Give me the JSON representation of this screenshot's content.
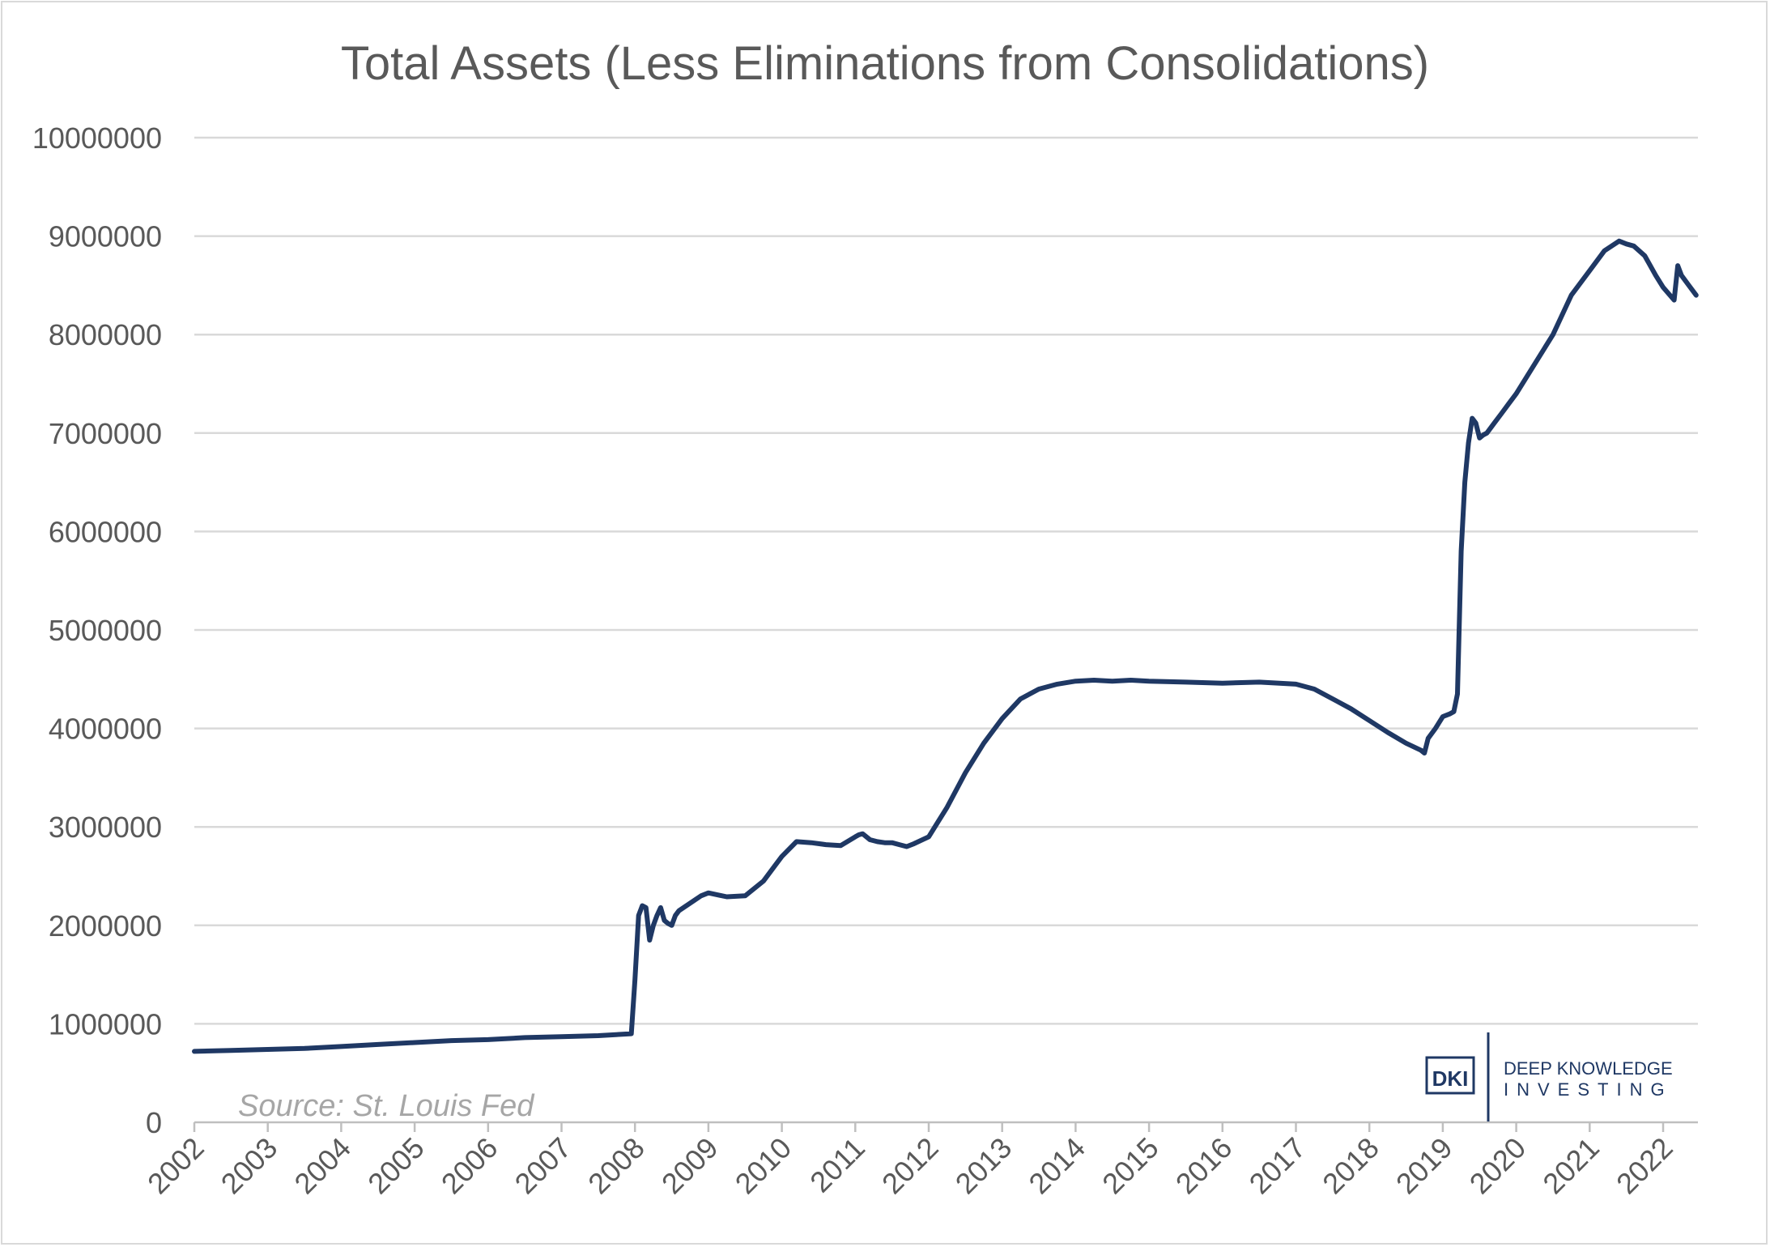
{
  "chart_data": {
    "type": "line",
    "title": "Total Assets (Less Eliminations from Consolidations)",
    "xlabel": "",
    "ylabel": "",
    "ylim": [
      0,
      10000000
    ],
    "yticks": [
      "0",
      "1000000",
      "2000000",
      "3000000",
      "4000000",
      "5000000",
      "6000000",
      "7000000",
      "8000000",
      "9000000",
      "10000000"
    ],
    "xticks": [
      "2002",
      "2003",
      "2004",
      "2005",
      "2006",
      "2007",
      "2008",
      "2009",
      "2010",
      "2011",
      "2012",
      "2013",
      "2014",
      "2015",
      "2016",
      "2017",
      "2018",
      "2019",
      "2020",
      "2021",
      "2022"
    ],
    "grid": "horizontal",
    "line_color": "#1f3864",
    "series": [
      {
        "x": [
          2002.0,
          2002.5,
          2003.0,
          2003.5,
          2004.0,
          2004.5,
          2005.0,
          2005.5,
          2006.0,
          2006.5,
          2007.0,
          2007.5,
          2007.95,
          2008.0,
          2008.05,
          2008.1,
          2008.15,
          2008.2,
          2008.25,
          2008.3,
          2008.35,
          2008.4,
          2008.45,
          2008.5,
          2008.55,
          2008.6,
          2008.7,
          2008.8,
          2008.9,
          2009.0,
          2009.25,
          2009.5,
          2009.75,
          2009.9,
          2010.0,
          2010.2,
          2010.4,
          2010.6,
          2010.8,
          2011.0,
          2011.05,
          2011.1,
          2011.2,
          2011.3,
          2011.4,
          2011.5,
          2011.6,
          2011.7,
          2011.8,
          2012.0,
          2012.25,
          2012.5,
          2012.75,
          2013.0,
          2013.25,
          2013.5,
          2013.75,
          2014.0,
          2014.25,
          2014.5,
          2014.75,
          2015.0,
          2015.5,
          2016.0,
          2016.5,
          2017.0,
          2017.25,
          2017.5,
          2017.75,
          2018.0,
          2018.25,
          2018.5,
          2018.7,
          2018.75,
          2018.8,
          2018.9,
          2019.0,
          2019.1,
          2019.15,
          2019.2,
          2019.25,
          2019.3,
          2019.35,
          2019.4,
          2019.45,
          2019.5,
          2019.55,
          2019.6,
          2019.7,
          2019.8,
          2019.9,
          2020.0,
          2020.25,
          2020.5,
          2020.75,
          2021.0,
          2021.2,
          2021.3,
          2021.4,
          2021.5,
          2021.6,
          2021.75,
          2021.9,
          2022.0,
          2022.15,
          2022.2,
          2022.25,
          2022.35,
          2022.45
        ],
        "values": [
          720000,
          730000,
          740000,
          750000,
          770000,
          790000,
          810000,
          830000,
          840000,
          860000,
          870000,
          880000,
          900000,
          1450000,
          2100000,
          2200000,
          2180000,
          1850000,
          2000000,
          2100000,
          2180000,
          2050000,
          2020000,
          2000000,
          2100000,
          2150000,
          2200000,
          2250000,
          2300000,
          2330000,
          2290000,
          2300000,
          2450000,
          2600000,
          2700000,
          2850000,
          2840000,
          2820000,
          2810000,
          2900000,
          2920000,
          2930000,
          2870000,
          2850000,
          2840000,
          2840000,
          2820000,
          2800000,
          2830000,
          2900000,
          3200000,
          3550000,
          3850000,
          4100000,
          4300000,
          4400000,
          4450000,
          4480000,
          4490000,
          4480000,
          4490000,
          4480000,
          4470000,
          4460000,
          4470000,
          4450000,
          4400000,
          4300000,
          4200000,
          4080000,
          3960000,
          3850000,
          3780000,
          3750000,
          3900000,
          4000000,
          4120000,
          4150000,
          4170000,
          4350000,
          5800000,
          6500000,
          6900000,
          7150000,
          7100000,
          6950000,
          6980000,
          7000000,
          7100000,
          7200000,
          7300000,
          7400000,
          7700000,
          8000000,
          8400000,
          8650000,
          8850000,
          8900000,
          8950000,
          8920000,
          8900000,
          8800000,
          8600000,
          8480000,
          8350000,
          8700000,
          8600000,
          8500000,
          8400000
        ]
      }
    ],
    "source": "Source: St. Louis Fed",
    "logo": {
      "mark": "DKI",
      "name": "DEEP KNOWLEDGE",
      "sub": "INVESTING"
    }
  }
}
